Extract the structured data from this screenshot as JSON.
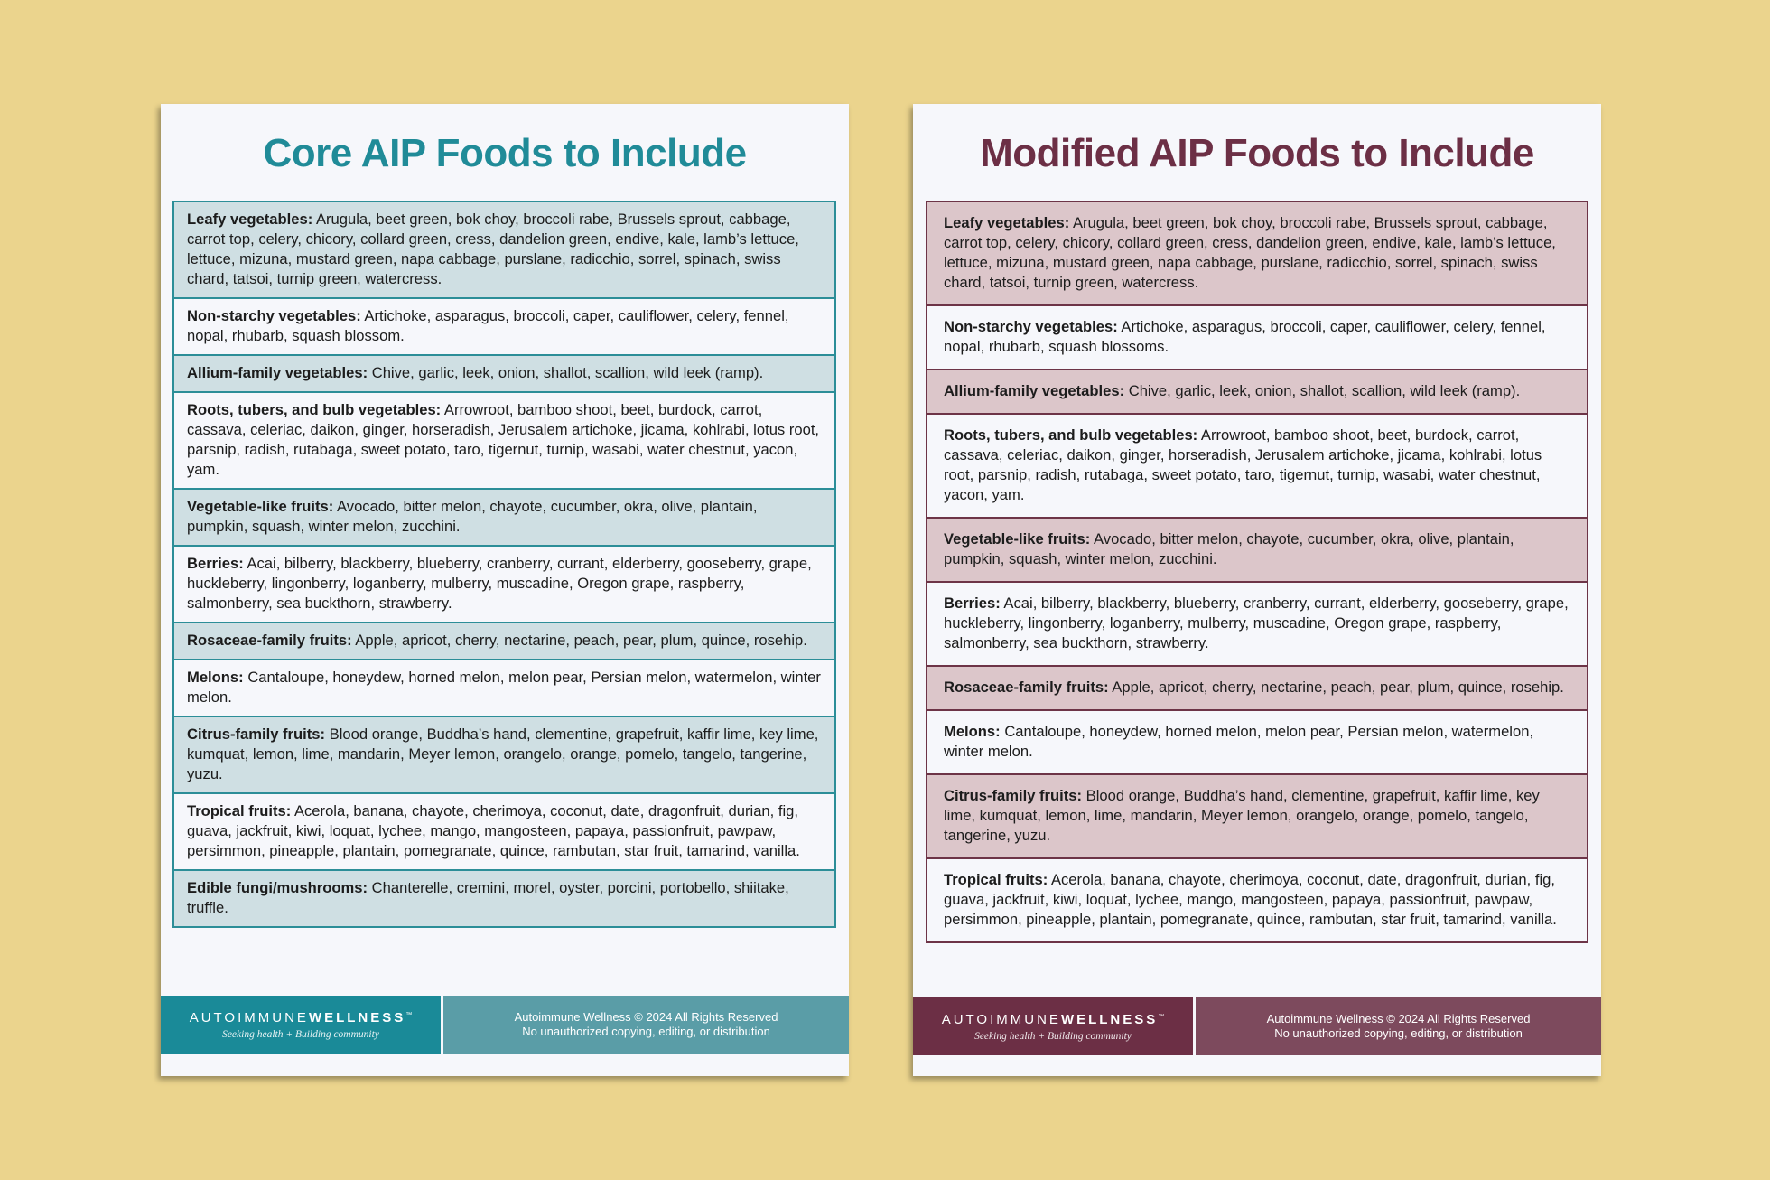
{
  "colors": {
    "background": "#ebd48d",
    "core_accent": "#208b98",
    "core_shade": "#cfdfe3",
    "modified_accent": "#6c2f45",
    "modified_shade": "#dcc6ca"
  },
  "core": {
    "title": "Core AIP Foods to Include",
    "rows": [
      {
        "label": "Leafy vegetables:",
        "text": " Arugula, beet green, bok choy, broccoli rabe, Brussels sprout, cabbage, carrot top, celery, chicory, collard green, cress, dandelion green, endive, kale, lamb’s lettuce, lettuce, mizuna, mustard green, napa cabbage, purslane, radicchio, sorrel, spinach, swiss chard, tatsoi, turnip green, watercress."
      },
      {
        "label": "Non-starchy vegetables:",
        "text": " Artichoke, asparagus, broccoli, caper, cauliflower, celery, fennel, nopal, rhubarb, squash blossom."
      },
      {
        "label": "Allium-family vegetables:",
        "text": " Chive, garlic, leek, onion, shallot, scallion, wild leek (ramp)."
      },
      {
        "label": "Roots, tubers, and bulb vegetables:",
        "text": " Arrowroot, bamboo shoot, beet, burdock, carrot, cassava, celeriac, daikon, ginger, horseradish, Jerusalem artichoke, jicama, kohlrabi, lotus root, parsnip, radish, rutabaga, sweet potato, taro, tigernut, turnip, wasabi, water chestnut, yacon, yam."
      },
      {
        "label": "Vegetable-like fruits:",
        "text": " Avocado, bitter melon, chayote, cucumber, okra, olive, plantain, pumpkin, squash, winter melon, zucchini."
      },
      {
        "label": "Berries:",
        "text": " Acai, bilberry, blackberry, blueberry, cranberry, currant, elderberry, gooseberry, grape, huckleberry, lingonberry, loganberry, mulberry, muscadine, Oregon grape, raspberry, salmonberry, sea buckthorn, strawberry."
      },
      {
        "label": "Rosaceae-family fruits:",
        "text": " Apple, apricot, cherry, nectarine, peach, pear, plum, quince, rosehip."
      },
      {
        "label": "Melons:",
        "text": " Cantaloupe, honeydew, horned melon, melon pear, Persian melon, watermelon, winter melon."
      },
      {
        "label": "Citrus-family fruits:",
        "text": " Blood orange, Buddha’s hand, clementine, grapefruit, kaffir lime, key lime, kumquat, lemon, lime, mandarin, Meyer lemon, orangelo, orange, pomelo, tangelo, tangerine, yuzu."
      },
      {
        "label": "Tropical fruits:",
        "text": " Acerola, banana, chayote, cherimoya, coconut, date, dragonfruit, durian, fig, guava, jackfruit, kiwi, loquat, lychee, mango, mangosteen, papaya, passionfruit, pawpaw, persimmon, pineapple, plantain, pomegranate, quince, rambutan, star fruit, tamarind, vanilla."
      },
      {
        "label": "Edible fungi/mushrooms:",
        "text": " Chanterelle, cremini, morel, oyster, porcini, portobello, shiitake, truffle."
      }
    ],
    "footer": {
      "brand_light": "AUTOIMMUNE",
      "brand_bold": "WELLNESS",
      "tm": "™",
      "tagline": "Seeking health + Building community",
      "copyright": "Autoimmune Wellness © 2024 All Rights Reserved",
      "notice": "No unauthorized copying, editing, or distribution"
    }
  },
  "modified": {
    "title": "Modified AIP Foods to Include",
    "rows": [
      {
        "label": "Leafy vegetables:",
        "text": " Arugula, beet green, bok choy, broccoli rabe, Brussels sprout, cabbage, carrot top, celery, chicory, collard green, cress, dandelion green, endive, kale, lamb’s lettuce, lettuce, mizuna, mustard green, napa cabbage, purslane, radicchio, sorrel, spinach, swiss chard, tatsoi, turnip green, watercress."
      },
      {
        "label": "Non-starchy vegetables:",
        "text": " Artichoke, asparagus, broccoli, caper, cauliflower, celery, fennel, nopal, rhubarb, squash blossoms."
      },
      {
        "label": "Allium-family vegetables:",
        "text": " Chive, garlic, leek, onion, shallot, scallion, wild leek (ramp)."
      },
      {
        "label": "Roots, tubers, and bulb vegetables:",
        "text": " Arrowroot, bamboo shoot, beet, burdock, carrot, cassava, celeriac, daikon, ginger, horseradish, Jerusalem artichoke, jicama, kohlrabi, lotus root, parsnip, radish, rutabaga, sweet potato, taro, tigernut, turnip, wasabi, water chestnut, yacon, yam."
      },
      {
        "label": "Vegetable-like fruits:",
        "text": " Avocado, bitter melon, chayote, cucumber, okra, olive, plantain, pumpkin, squash, winter melon, zucchini."
      },
      {
        "label": "Berries:",
        "text": " Acai, bilberry, blackberry, blueberry, cranberry, currant, elderberry, gooseberry, grape, huckleberry, lingonberry, loganberry, mulberry, muscadine, Oregon grape, raspberry, salmonberry, sea buckthorn, strawberry."
      },
      {
        "label": "Rosaceae-family fruits:",
        "text": " Apple, apricot, cherry, nectarine, peach, pear, plum, quince, rosehip."
      },
      {
        "label": "Melons:",
        "text": " Cantaloupe, honeydew, horned melon, melon pear, Persian melon, watermelon, winter melon."
      },
      {
        "label": "Citrus-family fruits:",
        "text": " Blood orange, Buddha’s hand, clementine, grapefruit, kaffir lime, key lime, kumquat, lemon, lime, mandarin, Meyer lemon, orangelo, orange, pomelo, tangelo, tangerine, yuzu."
      },
      {
        "label": "Tropical fruits:",
        "text": " Acerola, banana, chayote, cherimoya, coconut, date, dragonfruit, durian, fig, guava, jackfruit, kiwi, loquat, lychee, mango, mangosteen, papaya, passionfruit, pawpaw, persimmon, pineapple, plantain, pomegranate, quince, rambutan, star fruit, tamarind, vanilla."
      }
    ],
    "footer": {
      "brand_light": "AUTOIMMUNE",
      "brand_bold": "WELLNESS",
      "tm": "™",
      "tagline": "Seeking health + Building community",
      "copyright": "Autoimmune Wellness © 2024 All Rights Reserved",
      "notice": "No unauthorized copying, editing, or distribution"
    }
  }
}
